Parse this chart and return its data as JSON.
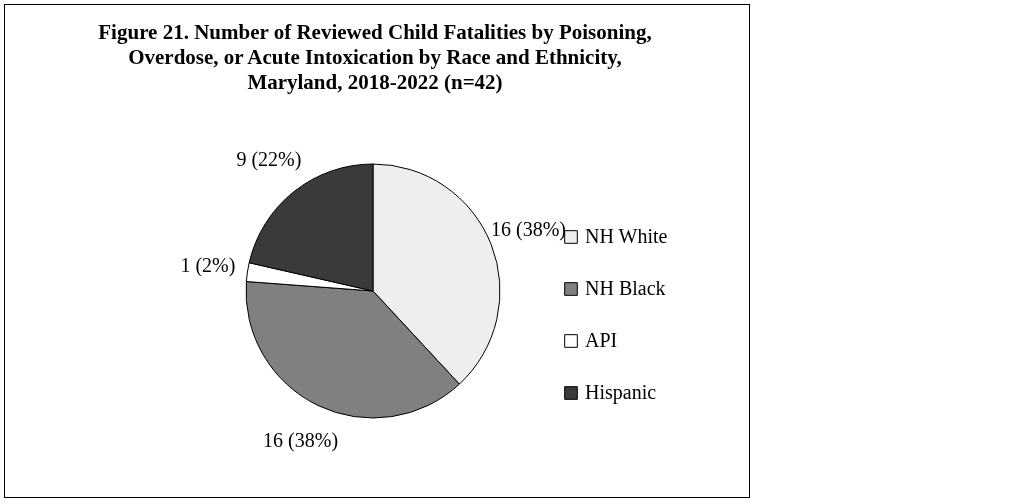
{
  "chart_data": {
    "type": "pie",
    "title": [
      "Figure 21. Number of Reviewed Child Fatalities by Poisoning,",
      "Overdose, or Acute Intoxication by Race and Ethnicity,",
      "Maryland, 2018-2022 (n=42)"
    ],
    "categories": [
      "NH White",
      "NH Black",
      "API",
      "Hispanic"
    ],
    "values": [
      16,
      16,
      1,
      9
    ],
    "colors": [
      "#eeeeee",
      "#808080",
      "#ffffff",
      "#3a3a3a"
    ],
    "value_labels": [
      "16 (38%)",
      "16 (38%)",
      "1 (2%)",
      "9 (22%)"
    ],
    "legend": "right"
  }
}
